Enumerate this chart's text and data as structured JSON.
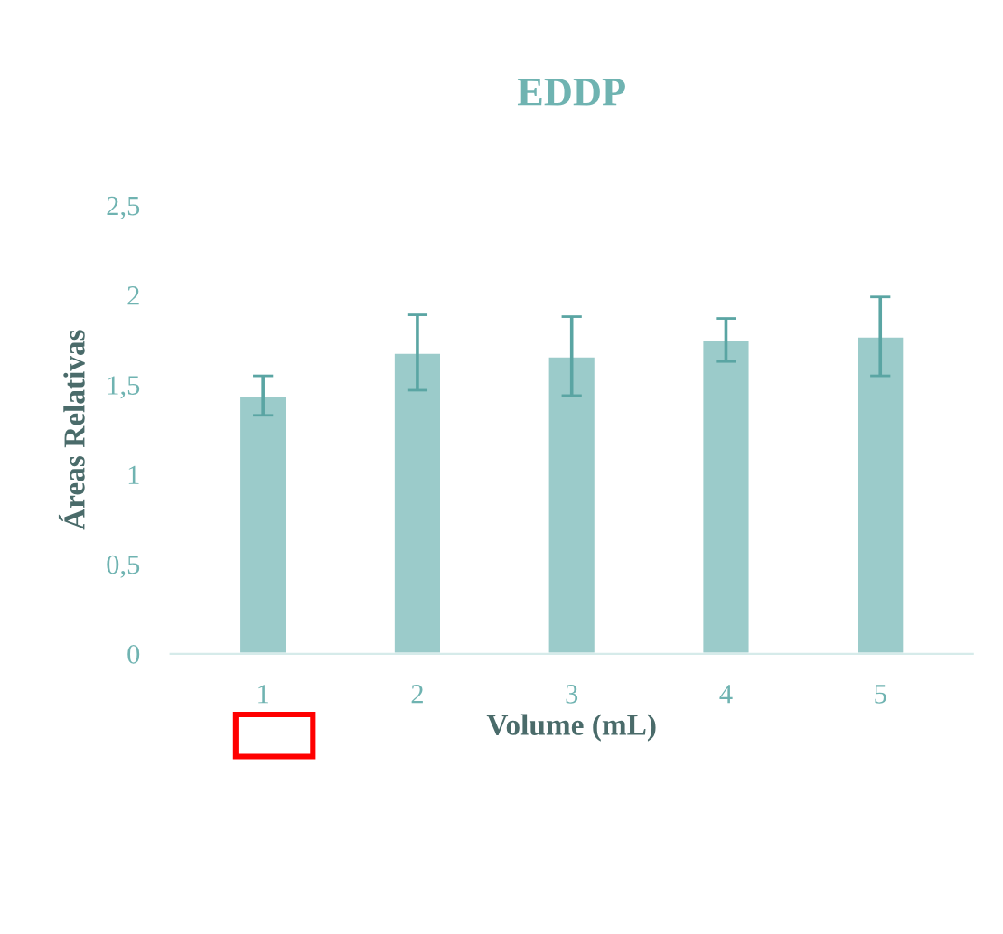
{
  "chart_data": {
    "type": "bar",
    "title": "EDDP",
    "xlabel": "Volume (mL)",
    "ylabel": "Áreas Relativas",
    "categories": [
      "1",
      "2",
      "3",
      "4",
      "5"
    ],
    "values": [
      1.44,
      1.68,
      1.66,
      1.75,
      1.77
    ],
    "errors": [
      0.11,
      0.21,
      0.22,
      0.12,
      0.22
    ],
    "color": "#9bcbca",
    "ylim": [
      0,
      2.5
    ],
    "yticks": [
      0,
      {
        "value": 0.5,
        "label": "0,5"
      },
      1,
      {
        "value": 1.5,
        "label": "1,5"
      },
      2,
      {
        "value": 2.5,
        "label": "2,5"
      }
    ],
    "grid": false
  }
}
